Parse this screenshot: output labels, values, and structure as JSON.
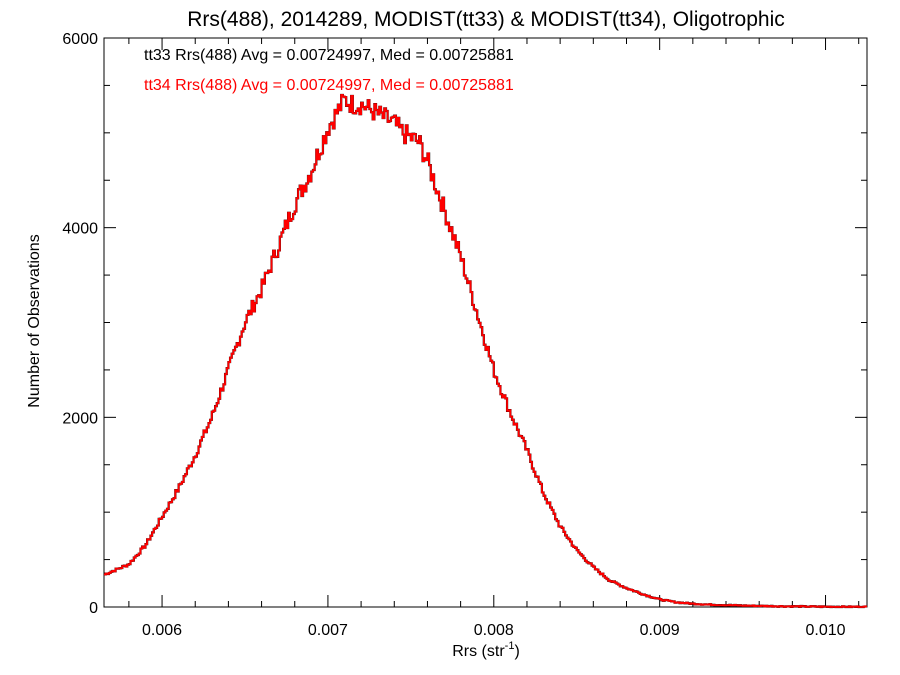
{
  "chart_data": {
    "type": "histogram",
    "title": "Rrs(488), 2014289, MODIST(tt33) & MODIST(tt34), Oligotrophic",
    "xlabel_base": "Rrs (str",
    "xlabel_sup": "-1",
    "xlabel_close": ")",
    "ylabel": "Number of Observations",
    "xlim": [
      0.00565,
      0.01025
    ],
    "ylim": [
      0,
      6000
    ],
    "xticks": [
      0.006,
      0.007,
      0.008,
      0.009,
      0.01
    ],
    "xtick_labels": [
      "0.006",
      "0.007",
      "0.008",
      "0.009",
      "0.010"
    ],
    "yticks": [
      0,
      2000,
      4000,
      6000
    ],
    "ytick_labels": [
      "0",
      "2000",
      "4000",
      "6000"
    ],
    "legend_placement": "top-left",
    "series": [
      {
        "name": "tt33",
        "legend_text": "tt33 Rrs(488) Avg = 0.00724997, Med = 0.00725881",
        "color": "#000000",
        "x": [
          0.00565,
          0.0058,
          0.0059,
          0.006,
          0.0061,
          0.0062,
          0.0063,
          0.0064,
          0.0065,
          0.0066,
          0.0067,
          0.0068,
          0.0069,
          0.007,
          0.00705,
          0.0071,
          0.00715,
          0.0072,
          0.00725,
          0.0073,
          0.00735,
          0.0074,
          0.00745,
          0.0075,
          0.00755,
          0.0076,
          0.0077,
          0.0078,
          0.0079,
          0.008,
          0.0081,
          0.0082,
          0.0083,
          0.0084,
          0.0085,
          0.0086,
          0.0087,
          0.0088,
          0.0089,
          0.009,
          0.0091,
          0.0092,
          0.0093,
          0.0095,
          0.0097,
          0.01,
          0.01025
        ],
        "y": [
          340,
          450,
          650,
          950,
          1250,
          1600,
          2000,
          2500,
          3000,
          3350,
          3800,
          4250,
          4600,
          5050,
          5200,
          5350,
          5300,
          5300,
          5250,
          5200,
          5150,
          5100,
          5000,
          4950,
          4900,
          4700,
          4200,
          3700,
          3100,
          2500,
          2050,
          1650,
          1200,
          850,
          600,
          420,
          280,
          200,
          135,
          80,
          50,
          35,
          25,
          15,
          8,
          3,
          2
        ]
      },
      {
        "name": "tt34",
        "legend_text": "tt34 Rrs(488) Avg = 0.00724997, Med = 0.00725881",
        "color": "#ff0000",
        "x": [
          0.00565,
          0.0058,
          0.0059,
          0.006,
          0.0061,
          0.0062,
          0.0063,
          0.0064,
          0.0065,
          0.0066,
          0.0067,
          0.0068,
          0.0069,
          0.007,
          0.00705,
          0.0071,
          0.00715,
          0.0072,
          0.00725,
          0.0073,
          0.00735,
          0.0074,
          0.00745,
          0.0075,
          0.00755,
          0.0076,
          0.0077,
          0.0078,
          0.0079,
          0.008,
          0.0081,
          0.0082,
          0.0083,
          0.0084,
          0.0085,
          0.0086,
          0.0087,
          0.0088,
          0.0089,
          0.009,
          0.0091,
          0.0092,
          0.0093,
          0.0095,
          0.0097,
          0.01,
          0.01025
        ],
        "y": [
          340,
          450,
          650,
          950,
          1250,
          1600,
          2000,
          2500,
          3000,
          3350,
          3800,
          4250,
          4600,
          5050,
          5200,
          5350,
          5300,
          5300,
          5250,
          5200,
          5150,
          5100,
          5000,
          4950,
          4900,
          4700,
          4200,
          3700,
          3100,
          2500,
          2050,
          1650,
          1200,
          850,
          600,
          420,
          280,
          200,
          135,
          80,
          50,
          35,
          25,
          15,
          8,
          3,
          2
        ]
      }
    ]
  }
}
